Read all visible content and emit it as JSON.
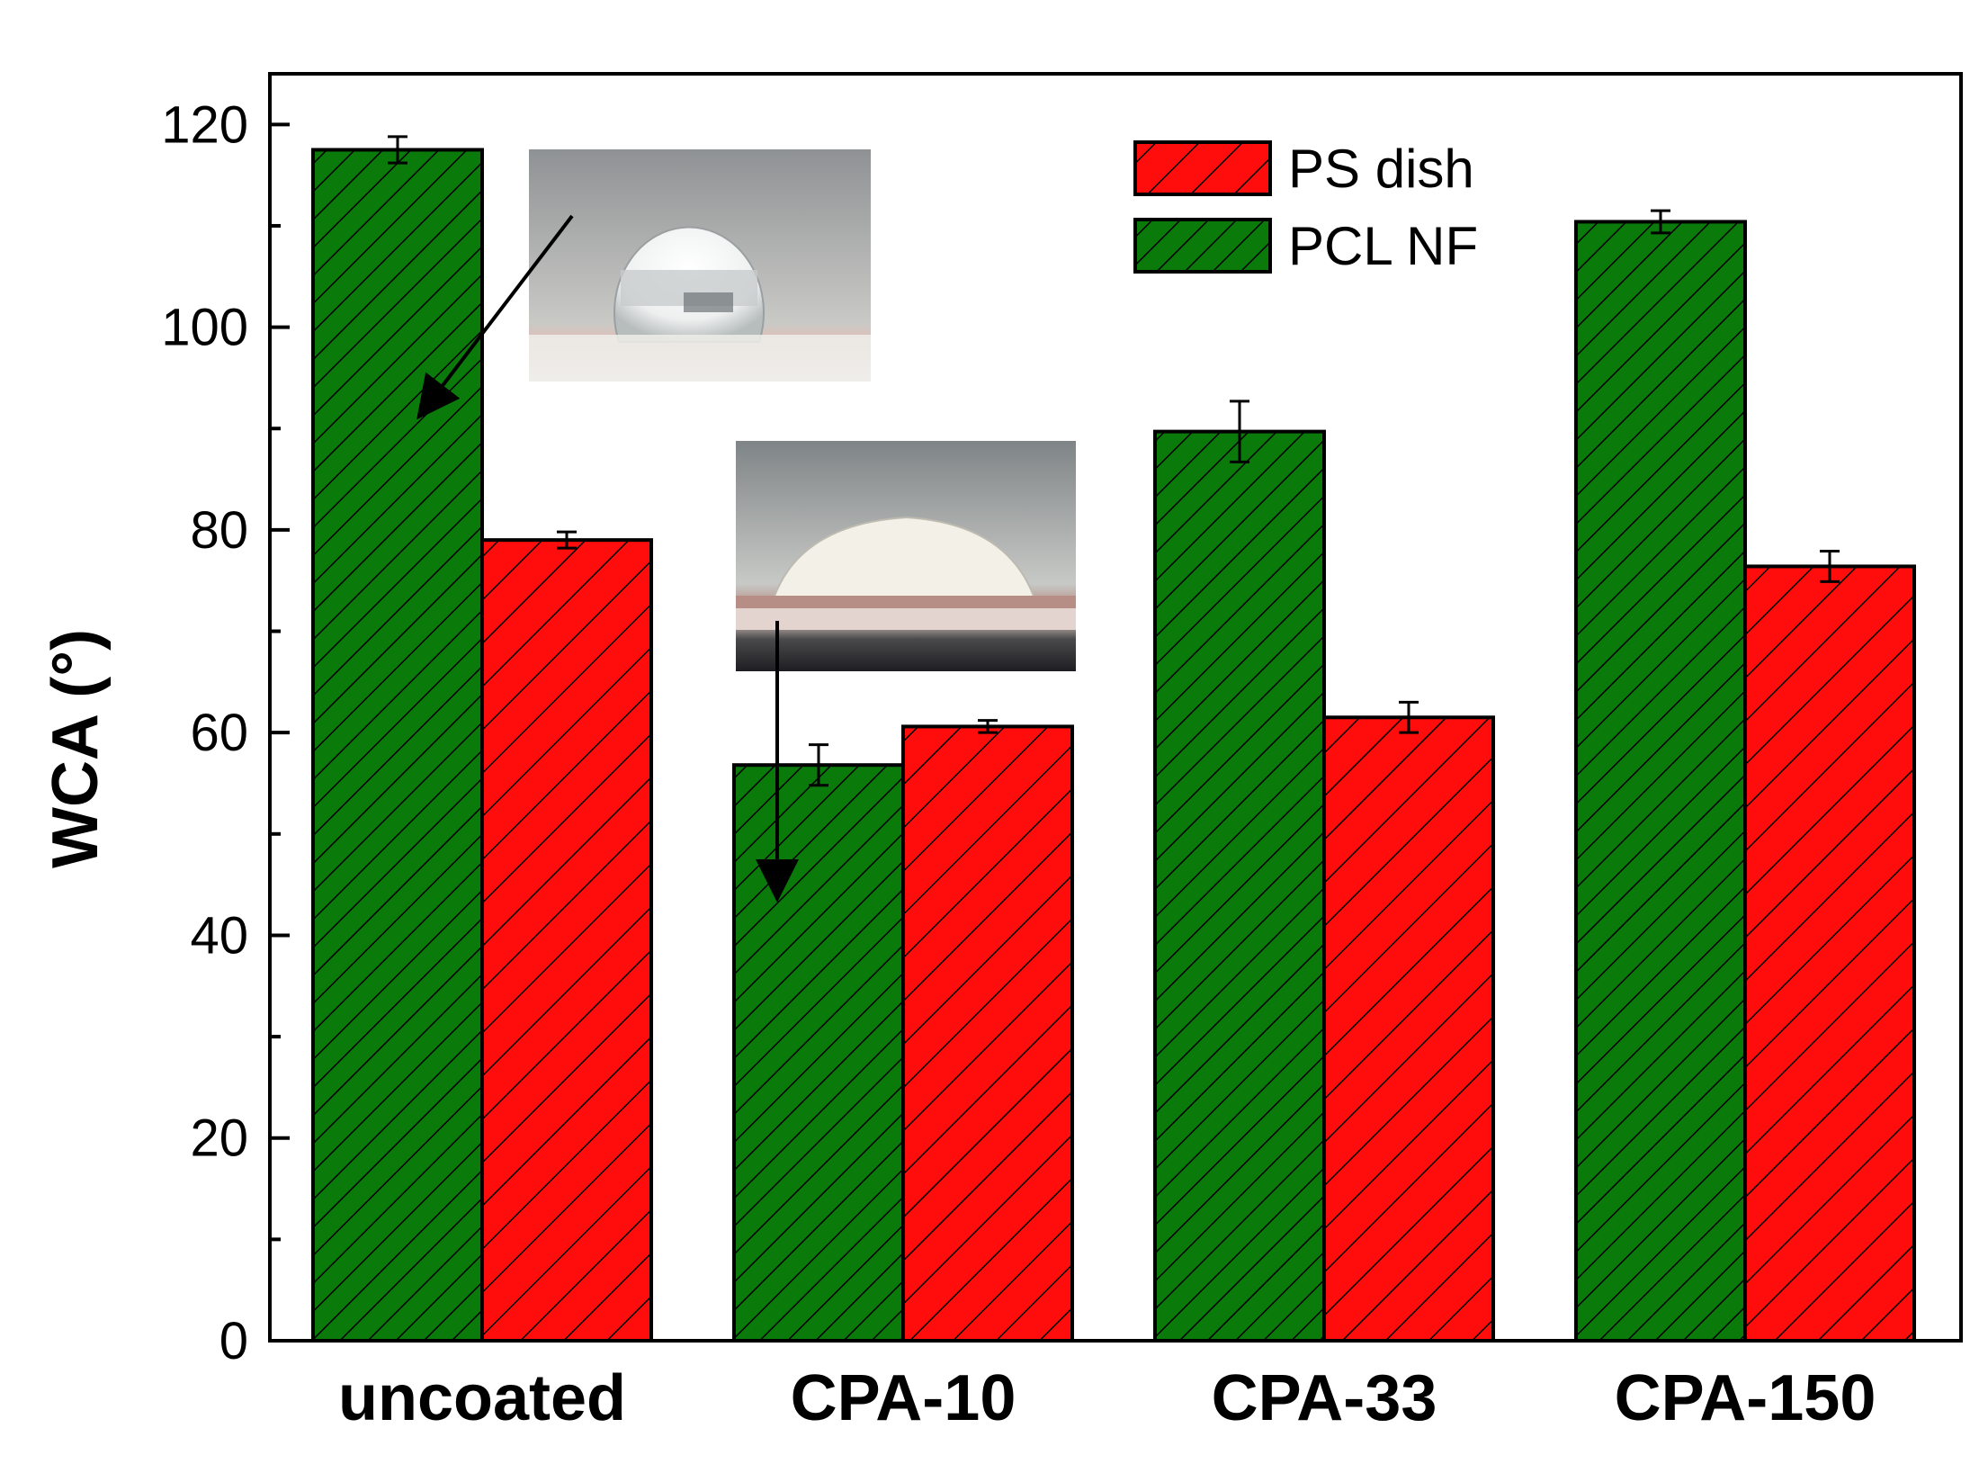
{
  "chart_data": {
    "type": "bar",
    "title": "",
    "xlabel": "",
    "ylabel": "WCA (°)",
    "ylim": [
      0,
      125
    ],
    "yticks": [
      0,
      20,
      40,
      60,
      80,
      100,
      120
    ],
    "ytick_labels": [
      "0",
      "20",
      "40",
      "60",
      "80",
      "100",
      "120"
    ],
    "categories": [
      "uncoated",
      "CPA-10",
      "CPA-33",
      "CPA-150"
    ],
    "series": [
      {
        "name": "PCL NF",
        "color": "#0a7a0a",
        "values": [
          117.5,
          56.8,
          89.7,
          110.4
        ],
        "errors": [
          1.3,
          2.0,
          3.0,
          1.1
        ]
      },
      {
        "name": "PS dish",
        "color": "#ff0d0d",
        "values": [
          79.0,
          60.6,
          61.5,
          76.4
        ],
        "errors": [
          0.8,
          0.6,
          1.5,
          1.5
        ]
      }
    ],
    "legend": {
      "position": "top-right",
      "entries": [
        "PS dish",
        "PCL NF"
      ]
    },
    "insets": [
      {
        "name": "water-droplet-photo-uncoated",
        "category": "uncoated",
        "series": "PCL NF"
      },
      {
        "name": "water-droplet-photo-cpa-10",
        "category": "CPA-10",
        "series": "PCL NF"
      }
    ]
  }
}
